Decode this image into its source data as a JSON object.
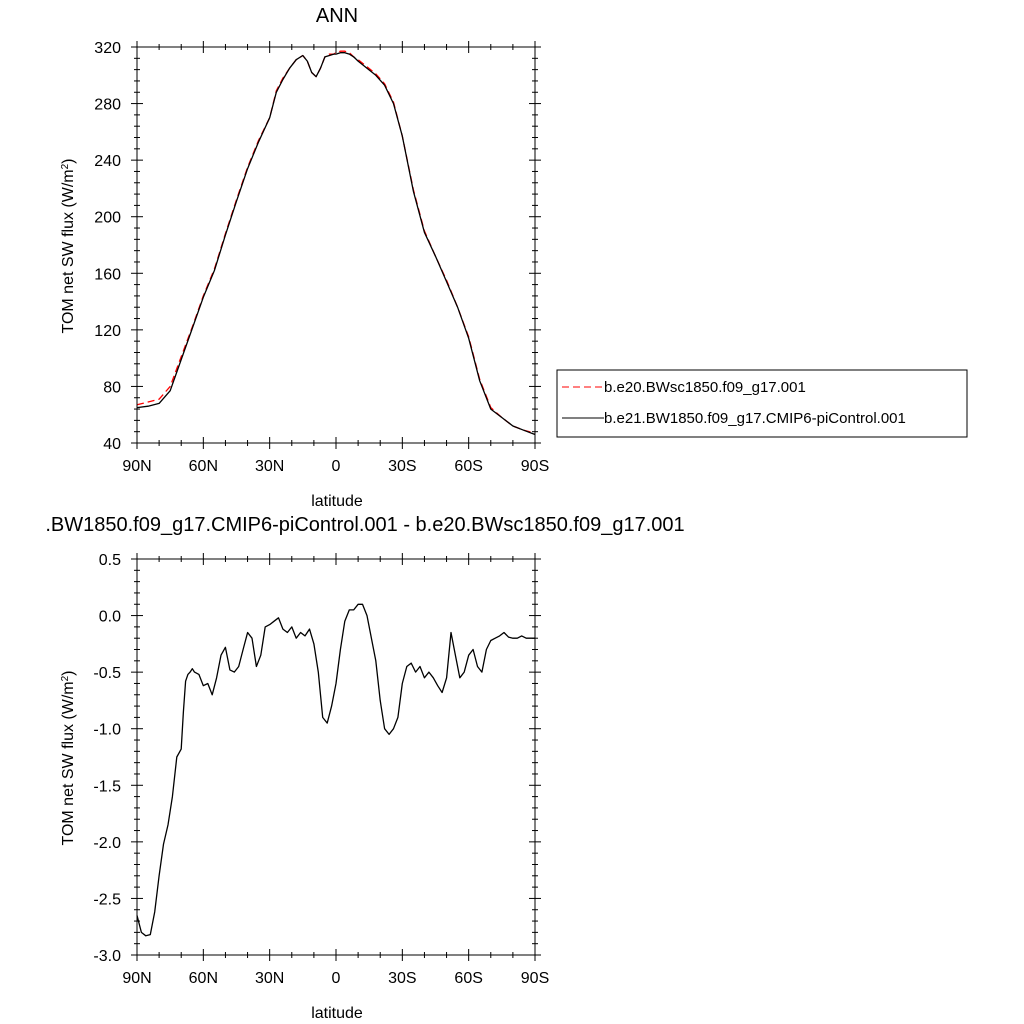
{
  "chart_data": [
    {
      "type": "line",
      "title": "ANN",
      "xlabel": "latitude",
      "ylabel": "TOM net SW flux (W/m²)",
      "ylabel_main": "TOM net SW flux (W/m",
      "ylabel_sup": "2",
      "ylabel_end": ")",
      "xlim": [
        90,
        -90
      ],
      "ylim": [
        40,
        320
      ],
      "x_ticks": [
        {
          "value": 90,
          "label": "90N"
        },
        {
          "value": 60,
          "label": "60N"
        },
        {
          "value": 30,
          "label": "30N"
        },
        {
          "value": 0,
          "label": "0"
        },
        {
          "value": -30,
          "label": "30S"
        },
        {
          "value": -60,
          "label": "60S"
        },
        {
          "value": -90,
          "label": "90S"
        }
      ],
      "y_ticks": [
        {
          "value": 40,
          "label": "40"
        },
        {
          "value": 80,
          "label": "80"
        },
        {
          "value": 120,
          "label": "120"
        },
        {
          "value": 160,
          "label": "160"
        },
        {
          "value": 200,
          "label": "200"
        },
        {
          "value": 240,
          "label": "240"
        },
        {
          "value": 280,
          "label": "280"
        },
        {
          "value": 320,
          "label": "320"
        }
      ],
      "legend_position": "right",
      "series": [
        {
          "name": "b.e20.BWsc1850.f09_g17.001",
          "color": "#ff0000",
          "style": "dashed",
          "x": [
            90,
            85,
            80,
            75,
            70,
            65,
            60,
            55,
            50,
            45,
            40,
            35,
            30,
            27,
            24,
            21,
            18,
            15,
            13,
            11,
            9,
            7,
            5,
            3,
            1,
            0,
            -2,
            -4,
            -6,
            -8,
            -10,
            -14,
            -18,
            -22,
            -26,
            -30,
            -35,
            -40,
            -45,
            -50,
            -55,
            -60,
            -65,
            -70,
            -75,
            -80,
            -85,
            -90
          ],
          "y": [
            67,
            69,
            71,
            80,
            101,
            122,
            144,
            163,
            188,
            212,
            235,
            254,
            270,
            289,
            298,
            305,
            311,
            314,
            310,
            302,
            299,
            305,
            313,
            315,
            315,
            316,
            317,
            317,
            316,
            313,
            311,
            306,
            301,
            294,
            281,
            257,
            219,
            190,
            172,
            155,
            136,
            115,
            85,
            65,
            58,
            52,
            49,
            47
          ]
        },
        {
          "name": "b.e21.BW1850.f09_g17.CMIP6-piControl.001",
          "color": "#000000",
          "style": "solid",
          "x": [
            90,
            85,
            80,
            75,
            70,
            65,
            60,
            55,
            50,
            45,
            40,
            35,
            30,
            27,
            24,
            21,
            18,
            15,
            13,
            11,
            9,
            7,
            5,
            3,
            1,
            0,
            -2,
            -4,
            -6,
            -8,
            -10,
            -14,
            -18,
            -22,
            -26,
            -30,
            -35,
            -40,
            -45,
            -50,
            -55,
            -60,
            -65,
            -70,
            -75,
            -80,
            -85,
            -90
          ],
          "y": [
            65,
            66,
            68,
            77,
            99,
            121,
            143,
            162,
            187,
            211,
            234,
            253,
            270,
            288,
            297,
            305,
            311,
            314,
            310,
            302,
            299,
            305,
            313,
            314,
            315,
            315,
            316,
            316,
            315,
            313,
            310,
            305,
            300,
            293,
            280,
            257,
            218,
            189,
            172,
            154,
            136,
            114,
            84,
            64,
            58,
            52,
            49,
            46
          ]
        }
      ]
    },
    {
      "type": "line",
      "title": ".BW1850.f09_g17.CMIP6-piControl.001 - b.e20.BWsc1850.f09_g17.001",
      "xlabel": "latitude",
      "ylabel": "TOM net SW flux (W/m²)",
      "ylabel_main": "TOM net SW flux (W/m",
      "ylabel_sup": "2",
      "ylabel_end": ")",
      "xlim": [
        90,
        -90
      ],
      "ylim": [
        -3.0,
        0.5
      ],
      "x_ticks": [
        {
          "value": 90,
          "label": "90N"
        },
        {
          "value": 60,
          "label": "60N"
        },
        {
          "value": 30,
          "label": "30N"
        },
        {
          "value": 0,
          "label": "0"
        },
        {
          "value": -30,
          "label": "30S"
        },
        {
          "value": -60,
          "label": "60S"
        },
        {
          "value": -90,
          "label": "90S"
        }
      ],
      "y_ticks": [
        {
          "value": 0.5,
          "label": "0.5"
        },
        {
          "value": 0.0,
          "label": "0.0"
        },
        {
          "value": -0.5,
          "label": "-0.5"
        },
        {
          "value": -1.0,
          "label": "-1.0"
        },
        {
          "value": -1.5,
          "label": "-1.5"
        },
        {
          "value": -2.0,
          "label": "-2.0"
        },
        {
          "value": -2.5,
          "label": "-2.5"
        },
        {
          "value": -3.0,
          "label": "-3.0"
        }
      ],
      "series": [
        {
          "color": "#000000",
          "style": "solid",
          "x": [
            90,
            88,
            86,
            84,
            82,
            80,
            78,
            76,
            74,
            72,
            70,
            69,
            68,
            67,
            66,
            65,
            64,
            62,
            60,
            58,
            56,
            54,
            52,
            50,
            48,
            46,
            44,
            42,
            40,
            38,
            36,
            34,
            32,
            30,
            28,
            26,
            24,
            22,
            20,
            18,
            16,
            14,
            12,
            10,
            8,
            6,
            4,
            2,
            0,
            -2,
            -4,
            -6,
            -8,
            -10,
            -12,
            -14,
            -16,
            -18,
            -20,
            -22,
            -24,
            -26,
            -28,
            -30,
            -32,
            -34,
            -36,
            -38,
            -40,
            -42,
            -44,
            -46,
            -48,
            -50,
            -52,
            -54,
            -56,
            -58,
            -60,
            -62,
            -64,
            -66,
            -68,
            -70,
            -72,
            -74,
            -76,
            -78,
            -80,
            -82,
            -84,
            -86,
            -88,
            -90
          ],
          "y": [
            -2.65,
            -2.8,
            -2.83,
            -2.82,
            -2.62,
            -2.3,
            -2.02,
            -1.85,
            -1.6,
            -1.25,
            -1.18,
            -0.85,
            -0.58,
            -0.52,
            -0.5,
            -0.47,
            -0.5,
            -0.52,
            -0.62,
            -0.6,
            -0.7,
            -0.55,
            -0.35,
            -0.28,
            -0.48,
            -0.5,
            -0.45,
            -0.3,
            -0.15,
            -0.2,
            -0.45,
            -0.35,
            -0.1,
            -0.08,
            -0.05,
            -0.02,
            -0.12,
            -0.15,
            -0.1,
            -0.2,
            -0.15,
            -0.18,
            -0.12,
            -0.25,
            -0.5,
            -0.9,
            -0.95,
            -0.8,
            -0.6,
            -0.3,
            -0.05,
            0.05,
            0.05,
            0.1,
            0.1,
            0.0,
            -0.2,
            -0.4,
            -0.75,
            -1.0,
            -1.05,
            -1.0,
            -0.9,
            -0.6,
            -0.45,
            -0.42,
            -0.5,
            -0.45,
            -0.55,
            -0.5,
            -0.55,
            -0.62,
            -0.68,
            -0.55,
            -0.15,
            -0.35,
            -0.55,
            -0.5,
            -0.35,
            -0.3,
            -0.45,
            -0.5,
            -0.3,
            -0.22,
            -0.2,
            -0.18,
            -0.15,
            -0.19,
            -0.2,
            -0.2,
            -0.18,
            -0.2,
            -0.2,
            -0.2
          ]
        }
      ]
    }
  ]
}
